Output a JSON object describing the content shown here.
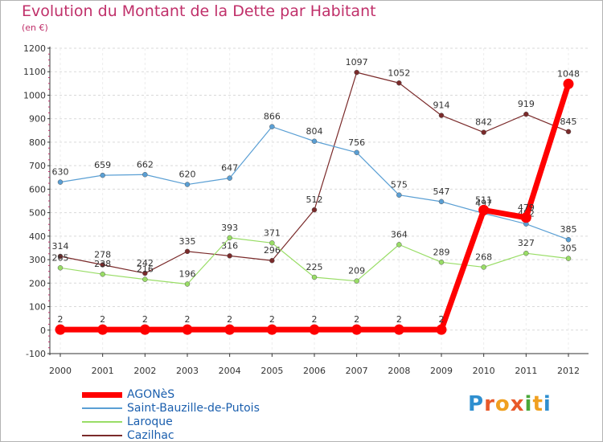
{
  "header": {
    "title": "Evolution du Montant de la Dette par Habitant",
    "subtitle": "(en €)"
  },
  "logo": {
    "letters": [
      "P",
      "r",
      "o",
      "x",
      "i",
      "t",
      "i"
    ],
    "colors": [
      "#2f8fcf",
      "#e8592a",
      "#f0a020",
      "#e8592a",
      "#4aa83a",
      "#f0a020",
      "#2f8fcf"
    ]
  },
  "chart_data": {
    "type": "line",
    "title": "Evolution du Montant de la Dette par Habitant",
    "subtitle": "(en €)",
    "x": [
      "2000",
      "2001",
      "2002",
      "2003",
      "2004",
      "2005",
      "2006",
      "2007",
      "2008",
      "2009",
      "2010",
      "2011",
      "2012"
    ],
    "ylim": [
      -100,
      1200
    ],
    "yticks": [
      -100,
      0,
      100,
      200,
      300,
      400,
      500,
      600,
      700,
      800,
      900,
      1000,
      1100,
      1200
    ],
    "grid": "horizontal dashed",
    "legend_position": "bottom-left",
    "series": [
      {
        "name": "AGONèS",
        "color": "#ff0000",
        "values": [
          2,
          2,
          2,
          2,
          2,
          2,
          2,
          2,
          2,
          2,
          511,
          479,
          1048
        ],
        "labels": [
          "2",
          "2",
          "2",
          "2",
          "2",
          "2",
          "2",
          "2",
          "2",
          "2",
          "511",
          "479",
          "1048"
        ]
      },
      {
        "name": "Saint-Bauzille-de-Putois",
        "color": "#5a9fd4",
        "values": [
          630,
          659,
          662,
          620,
          647,
          866,
          804,
          756,
          575,
          547,
          497,
          452,
          385
        ],
        "labels": [
          "630",
          "659",
          "662",
          "620",
          "647",
          "866",
          "804",
          "756",
          "575",
          "547",
          "497",
          "452",
          "385"
        ]
      },
      {
        "name": "Laroque",
        "color": "#99dd66",
        "values": [
          265,
          238,
          216,
          196,
          393,
          371,
          225,
          209,
          364,
          289,
          268,
          327,
          305
        ],
        "labels": [
          "265",
          "238",
          "216",
          "196",
          "393",
          "371",
          "225",
          "209",
          "364",
          "289",
          "268",
          "327",
          "305"
        ]
      },
      {
        "name": "Cazilhac",
        "color": "#7a2a2a",
        "values": [
          314,
          278,
          242,
          335,
          316,
          296,
          512,
          1097,
          1052,
          914,
          842,
          919,
          845
        ],
        "labels": [
          "314",
          "278",
          "242",
          "335",
          "316",
          "296",
          "512",
          "1097",
          "1052",
          "914",
          "842",
          "919",
          "845"
        ]
      }
    ]
  }
}
